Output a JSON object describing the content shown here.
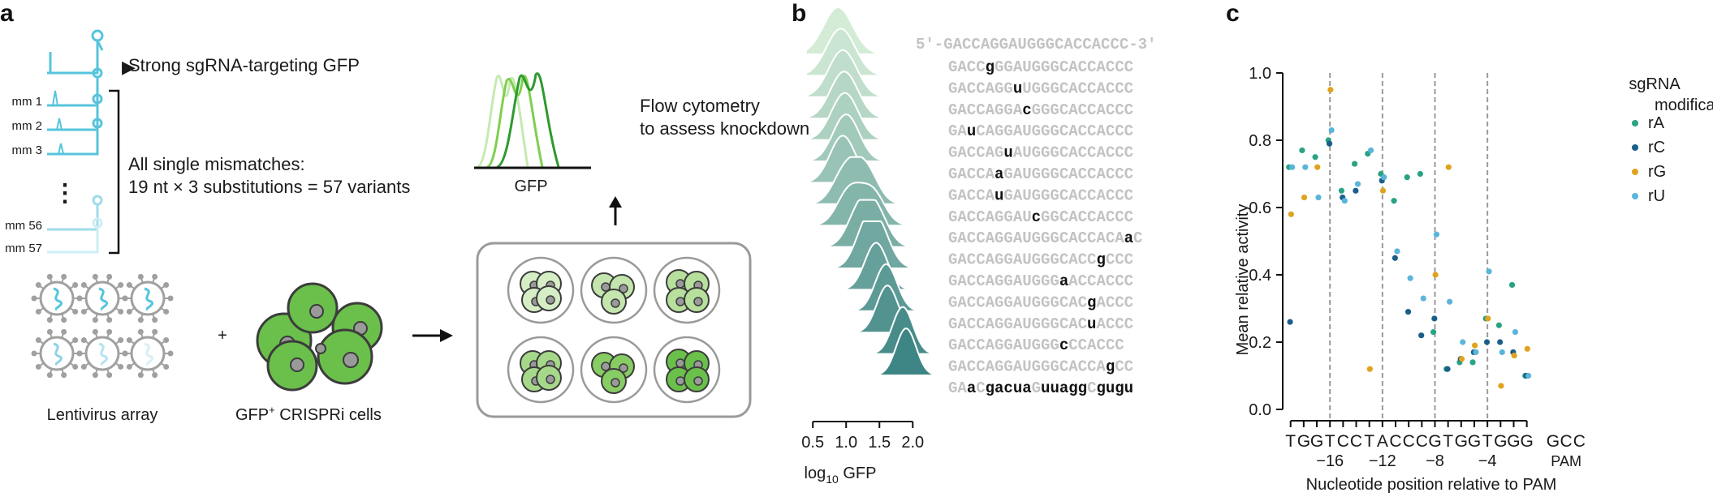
{
  "panels": {
    "a": {
      "letter": "a",
      "strong_label": "Strong sgRNA-targeting GFP",
      "mismatch_labels": [
        "mm 1",
        "mm 2",
        "mm 3",
        "mm 56",
        "mm 57"
      ],
      "ellipsis": "⋮",
      "variants_line1": "All single mismatches:",
      "variants_line2": "19 nt × 3 substitutions = 57 variants",
      "flow_line1": "Flow cytometry",
      "flow_line2": "to assess knockdown",
      "gfp_axis_label": "GFP",
      "lentivirus_label": "Lentivirus array",
      "plus": "+",
      "cells_label_prefix": "GFP",
      "cells_label_sup": "+",
      "cells_label_suffix": " CRISPRi cells",
      "colors": {
        "sgrna": "#56c4dc",
        "cell_green": "#6ac04a",
        "cell_dark": "#3c3c3c",
        "virus": "#9b9b9b"
      }
    },
    "b": {
      "letter": "b",
      "top_sequence": "5′-GACCAGGAUGGGCACCACCC-3′",
      "rows": [
        {
          "pre": "GACC",
          "mut": "g",
          "post": "GGAUGGGCACCACCC"
        },
        {
          "pre": "GACCAGG",
          "mut": "u",
          "post": "UGGGCACCACCC"
        },
        {
          "pre": "GACCAGGA",
          "mut": "c",
          "post": "GGGCACCACCC"
        },
        {
          "pre": "GA",
          "mut": "u",
          "post": "CAGGAUGGGCACCACCC"
        },
        {
          "pre": "GACCAG",
          "mut": "u",
          "post": "AUGGGCACCACCC"
        },
        {
          "pre": "GACCA",
          "mut": "a",
          "post": "GAUGGGCACCACCC"
        },
        {
          "pre": "GACCA",
          "mut": "u",
          "post": "GAUGGGCACCACCC"
        },
        {
          "pre": "GACCAGGAU",
          "mut": "c",
          "post": "GGCACCACCC"
        },
        {
          "pre": "GACCAGGAUGGGCACCACA",
          "mut": "a",
          "post": "C"
        },
        {
          "pre": "GACCAGGAUGGGCACC",
          "mut": "g",
          "post": "CCC"
        },
        {
          "pre": "GACCAGGAUGGG",
          "mut": "a",
          "post": "ACCACCC"
        },
        {
          "pre": "GACCAGGAUGGGCAC",
          "mut": "g",
          "post": "ACCC"
        },
        {
          "pre": "GACCAGGAUGGGCAC",
          "mut": "u",
          "post": "ACCC"
        },
        {
          "pre": "GACCAGGAUGGG",
          "mut": "c",
          "post": "CCACCC"
        },
        {
          "pre": "GACCAGGAUGGGCACCA",
          "mut": "g",
          "post": "CC"
        }
      ],
      "last_row": [
        {
          "t": "GA",
          "m": false
        },
        {
          "t": "a",
          "m": true
        },
        {
          "t": "C",
          "m": false
        },
        {
          "t": "gacua",
          "m": true
        },
        {
          "t": "G",
          "m": false
        },
        {
          "t": "uuagg",
          "m": true
        },
        {
          "t": "C",
          "m": false
        },
        {
          "t": "gugu",
          "m": true
        }
      ],
      "ridge_peaks": [
        0.88,
        0.92,
        0.95,
        0.97,
        0.98,
        1.0,
        0.95,
        1.0,
        1.05,
        1.2,
        1.3,
        1.45,
        1.6,
        1.62,
        1.85,
        1.9
      ],
      "ridge_secondary": [
        null,
        null,
        null,
        null,
        null,
        null,
        null,
        1.3,
        1.4,
        1.45,
        1.5,
        null,
        null,
        null,
        null,
        null
      ],
      "xticks": [
        "0.5",
        "1.0",
        "1.5",
        "2.0"
      ],
      "xticks_num": [
        0.5,
        1.0,
        1.5,
        2.0
      ],
      "xlabel_pre": "log",
      "xlabel_sub": "10",
      "xlabel_post": " GFP",
      "ridge_color_light": "#d4ecd6",
      "ridge_color_dark": "#3e8585"
    },
    "c": {
      "letter": "c"
    }
  },
  "chart_data": {
    "type": "scatter",
    "ylabel": "Mean relative activity",
    "xlabel": "Nucleotide position relative to PAM",
    "ylim": [
      0.0,
      1.0
    ],
    "yticks": [
      "0.0",
      "0.2",
      "0.4",
      "0.6",
      "0.8",
      "1.0"
    ],
    "xlim": [
      -19.6,
      3.6
    ],
    "categories": [
      "T",
      "G",
      "G",
      "T",
      "C",
      "C",
      "T",
      "A",
      "C",
      "C",
      "C",
      "G",
      "T",
      "G",
      "G",
      "T",
      "G",
      "G",
      "G",
      "G",
      "C",
      "C"
    ],
    "category_x": [
      -19,
      -18,
      -17,
      -16,
      -15,
      -14,
      -13,
      -12,
      -11,
      -10,
      -9,
      -8,
      -7,
      -6,
      -5,
      -4,
      -3,
      -2,
      -1,
      1,
      2,
      3
    ],
    "pam_positions": [
      1,
      2,
      3
    ],
    "pam_label": "PAM",
    "position_ticks": [
      "−16",
      "−12",
      "−8",
      "−4"
    ],
    "position_ticks_x": [
      -16,
      -12,
      -8,
      -4
    ],
    "dashed_at": [
      -16,
      -12,
      -8,
      -4
    ],
    "legend": {
      "title_line1": "sgRNA",
      "title_line2": "modification",
      "placement": "top-right"
    },
    "series": [
      {
        "name": "rA",
        "color": "#29a383",
        "points": [
          [
            -19,
            0.72
          ],
          [
            -18,
            0.77
          ],
          [
            -17,
            0.75
          ],
          [
            -16,
            0.8
          ],
          [
            -15,
            0.65
          ],
          [
            -14,
            0.73
          ],
          [
            -13,
            0.76
          ],
          [
            -12,
            0.7
          ],
          [
            -11,
            0.62
          ],
          [
            -10,
            0.69
          ],
          [
            -9,
            0.7
          ],
          [
            -8,
            0.23
          ],
          [
            -7,
            0.12
          ],
          [
            -6,
            0.14
          ],
          [
            -5,
            0.14
          ],
          [
            -4,
            0.27
          ],
          [
            -3,
            0.25
          ],
          [
            -2,
            0.37
          ],
          [
            -1,
            0.1
          ]
        ]
      },
      {
        "name": "rC",
        "color": "#1b5e8a",
        "points": [
          [
            -19,
            0.26
          ],
          [
            -16,
            0.79
          ],
          [
            -15,
            0.63
          ],
          [
            -14,
            0.65
          ],
          [
            -12,
            0.68
          ],
          [
            -11,
            0.45
          ],
          [
            -10,
            0.29
          ],
          [
            -9,
            0.22
          ],
          [
            -8,
            0.27
          ],
          [
            -7,
            0.12
          ],
          [
            -6,
            0.15
          ],
          [
            -5,
            0.17
          ],
          [
            -4,
            0.2
          ],
          [
            -3,
            0.2
          ],
          [
            -2,
            0.17
          ],
          [
            -1,
            0.1
          ]
        ]
      },
      {
        "name": "rG",
        "color": "#e0a31e",
        "points": [
          [
            -19,
            0.58
          ],
          [
            -18,
            0.63
          ],
          [
            -17,
            0.72
          ],
          [
            -16,
            0.95
          ],
          [
            -13,
            0.12
          ],
          [
            -12,
            0.65
          ],
          [
            -8,
            0.4
          ],
          [
            -7,
            0.72
          ],
          [
            -6,
            0.15
          ],
          [
            -5,
            0.19
          ],
          [
            -4,
            0.27
          ],
          [
            -3,
            0.07
          ],
          [
            -2,
            0.16
          ],
          [
            -1,
            0.18
          ]
        ]
      },
      {
        "name": "rU",
        "color": "#5bb5db",
        "points": [
          [
            -19,
            0.72
          ],
          [
            -18,
            0.72
          ],
          [
            -17,
            0.63
          ],
          [
            -16,
            0.83
          ],
          [
            -15,
            0.62
          ],
          [
            -14,
            0.67
          ],
          [
            -13,
            0.77
          ],
          [
            -12,
            0.69
          ],
          [
            -11,
            0.47
          ],
          [
            -10,
            0.39
          ],
          [
            -9,
            0.33
          ],
          [
            -8,
            0.52
          ],
          [
            -7,
            0.32
          ],
          [
            -6,
            0.2
          ],
          [
            -5,
            0.17
          ],
          [
            -4,
            0.41
          ],
          [
            -3,
            0.17
          ],
          [
            -2,
            0.23
          ],
          [
            -1,
            0.1
          ]
        ]
      }
    ]
  }
}
